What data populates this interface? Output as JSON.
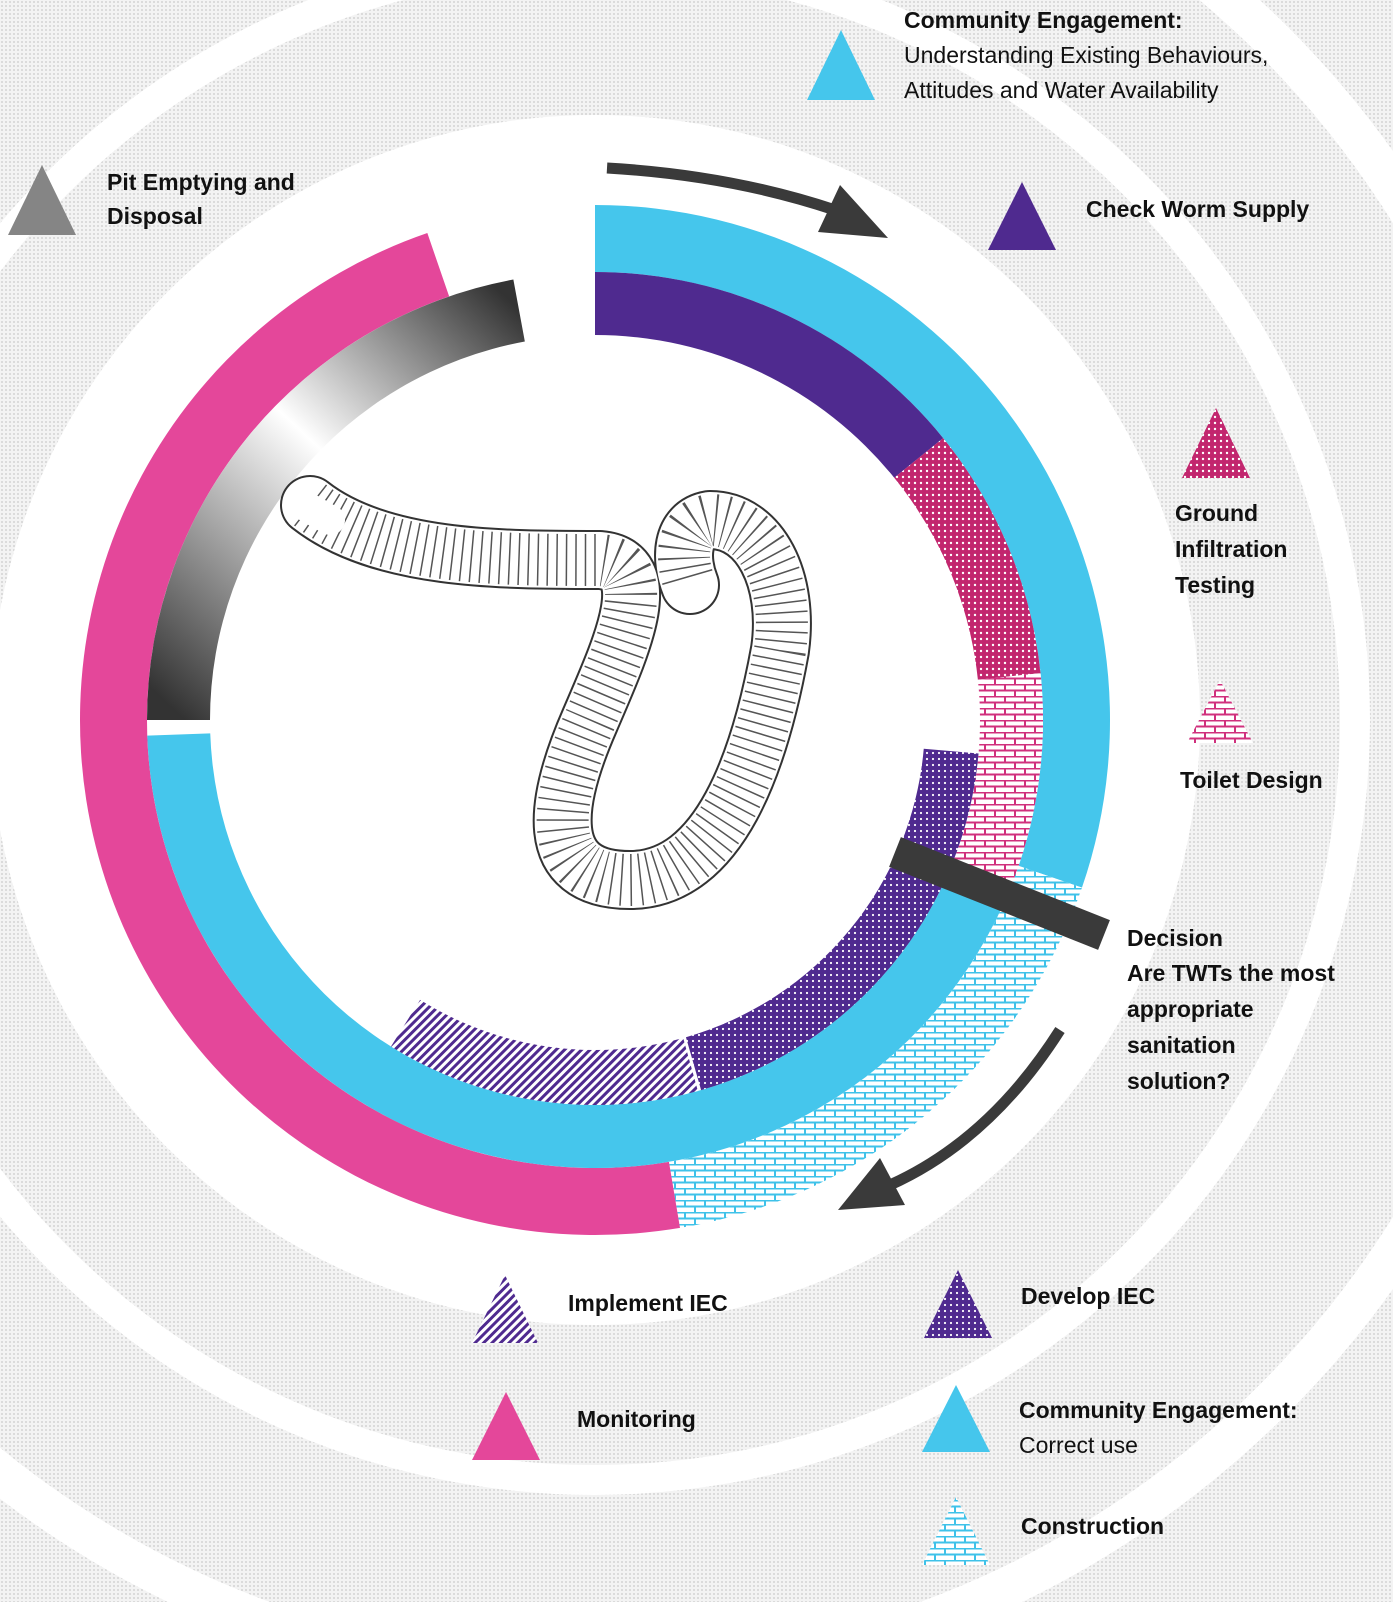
{
  "legend": [
    {
      "title": "Community Engagement:",
      "description": [
        "Understanding Existing Behaviours,",
        "Attitudes and Water Availability"
      ]
    },
    {
      "title": [
        "Pit Emptying and",
        "Disposal"
      ]
    },
    {
      "title": "Check Worm Supply"
    },
    {
      "title": [
        "Ground",
        "Infiltration",
        "Testing"
      ]
    },
    {
      "title": "Toilet Design"
    },
    {
      "title": "Implement IEC"
    },
    {
      "title": "Develop IEC"
    },
    {
      "title": "Monitoring"
    },
    {
      "title": "Community Engagement:",
      "description": [
        "Correct use"
      ]
    },
    {
      "title": "Construction"
    }
  ],
  "decision": {
    "title": "Decision",
    "question": [
      "Are TWTs the most",
      "appropriate",
      "sanitation",
      "solution?"
    ]
  }
}
